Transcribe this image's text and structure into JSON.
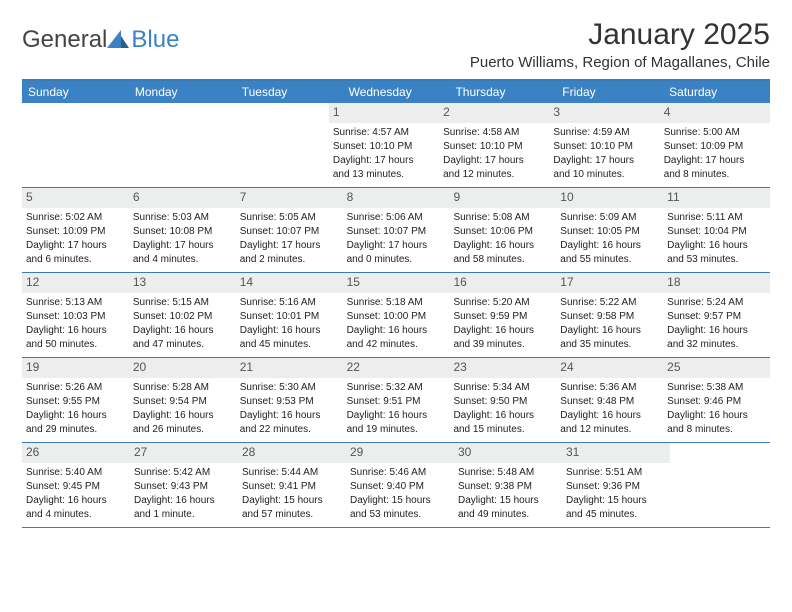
{
  "brand": {
    "part1": "General",
    "part2": "Blue"
  },
  "title": "January 2025",
  "location": "Puerto Williams, Region of Magallanes, Chile",
  "colors": {
    "header_bg": "#3b82c4",
    "border": "#3b7bb5",
    "day_number_bg": "#eceded",
    "text": "#333333"
  },
  "weekdays": [
    "Sunday",
    "Monday",
    "Tuesday",
    "Wednesday",
    "Thursday",
    "Friday",
    "Saturday"
  ],
  "weeks": [
    [
      null,
      null,
      null,
      {
        "n": "1",
        "sr": "Sunrise: 4:57 AM",
        "ss": "Sunset: 10:10 PM",
        "d1": "Daylight: 17 hours",
        "d2": "and 13 minutes."
      },
      {
        "n": "2",
        "sr": "Sunrise: 4:58 AM",
        "ss": "Sunset: 10:10 PM",
        "d1": "Daylight: 17 hours",
        "d2": "and 12 minutes."
      },
      {
        "n": "3",
        "sr": "Sunrise: 4:59 AM",
        "ss": "Sunset: 10:10 PM",
        "d1": "Daylight: 17 hours",
        "d2": "and 10 minutes."
      },
      {
        "n": "4",
        "sr": "Sunrise: 5:00 AM",
        "ss": "Sunset: 10:09 PM",
        "d1": "Daylight: 17 hours",
        "d2": "and 8 minutes."
      }
    ],
    [
      {
        "n": "5",
        "sr": "Sunrise: 5:02 AM",
        "ss": "Sunset: 10:09 PM",
        "d1": "Daylight: 17 hours",
        "d2": "and 6 minutes."
      },
      {
        "n": "6",
        "sr": "Sunrise: 5:03 AM",
        "ss": "Sunset: 10:08 PM",
        "d1": "Daylight: 17 hours",
        "d2": "and 4 minutes."
      },
      {
        "n": "7",
        "sr": "Sunrise: 5:05 AM",
        "ss": "Sunset: 10:07 PM",
        "d1": "Daylight: 17 hours",
        "d2": "and 2 minutes."
      },
      {
        "n": "8",
        "sr": "Sunrise: 5:06 AM",
        "ss": "Sunset: 10:07 PM",
        "d1": "Daylight: 17 hours",
        "d2": "and 0 minutes."
      },
      {
        "n": "9",
        "sr": "Sunrise: 5:08 AM",
        "ss": "Sunset: 10:06 PM",
        "d1": "Daylight: 16 hours",
        "d2": "and 58 minutes."
      },
      {
        "n": "10",
        "sr": "Sunrise: 5:09 AM",
        "ss": "Sunset: 10:05 PM",
        "d1": "Daylight: 16 hours",
        "d2": "and 55 minutes."
      },
      {
        "n": "11",
        "sr": "Sunrise: 5:11 AM",
        "ss": "Sunset: 10:04 PM",
        "d1": "Daylight: 16 hours",
        "d2": "and 53 minutes."
      }
    ],
    [
      {
        "n": "12",
        "sr": "Sunrise: 5:13 AM",
        "ss": "Sunset: 10:03 PM",
        "d1": "Daylight: 16 hours",
        "d2": "and 50 minutes."
      },
      {
        "n": "13",
        "sr": "Sunrise: 5:15 AM",
        "ss": "Sunset: 10:02 PM",
        "d1": "Daylight: 16 hours",
        "d2": "and 47 minutes."
      },
      {
        "n": "14",
        "sr": "Sunrise: 5:16 AM",
        "ss": "Sunset: 10:01 PM",
        "d1": "Daylight: 16 hours",
        "d2": "and 45 minutes."
      },
      {
        "n": "15",
        "sr": "Sunrise: 5:18 AM",
        "ss": "Sunset: 10:00 PM",
        "d1": "Daylight: 16 hours",
        "d2": "and 42 minutes."
      },
      {
        "n": "16",
        "sr": "Sunrise: 5:20 AM",
        "ss": "Sunset: 9:59 PM",
        "d1": "Daylight: 16 hours",
        "d2": "and 39 minutes."
      },
      {
        "n": "17",
        "sr": "Sunrise: 5:22 AM",
        "ss": "Sunset: 9:58 PM",
        "d1": "Daylight: 16 hours",
        "d2": "and 35 minutes."
      },
      {
        "n": "18",
        "sr": "Sunrise: 5:24 AM",
        "ss": "Sunset: 9:57 PM",
        "d1": "Daylight: 16 hours",
        "d2": "and 32 minutes."
      }
    ],
    [
      {
        "n": "19",
        "sr": "Sunrise: 5:26 AM",
        "ss": "Sunset: 9:55 PM",
        "d1": "Daylight: 16 hours",
        "d2": "and 29 minutes."
      },
      {
        "n": "20",
        "sr": "Sunrise: 5:28 AM",
        "ss": "Sunset: 9:54 PM",
        "d1": "Daylight: 16 hours",
        "d2": "and 26 minutes."
      },
      {
        "n": "21",
        "sr": "Sunrise: 5:30 AM",
        "ss": "Sunset: 9:53 PM",
        "d1": "Daylight: 16 hours",
        "d2": "and 22 minutes."
      },
      {
        "n": "22",
        "sr": "Sunrise: 5:32 AM",
        "ss": "Sunset: 9:51 PM",
        "d1": "Daylight: 16 hours",
        "d2": "and 19 minutes."
      },
      {
        "n": "23",
        "sr": "Sunrise: 5:34 AM",
        "ss": "Sunset: 9:50 PM",
        "d1": "Daylight: 16 hours",
        "d2": "and 15 minutes."
      },
      {
        "n": "24",
        "sr": "Sunrise: 5:36 AM",
        "ss": "Sunset: 9:48 PM",
        "d1": "Daylight: 16 hours",
        "d2": "and 12 minutes."
      },
      {
        "n": "25",
        "sr": "Sunrise: 5:38 AM",
        "ss": "Sunset: 9:46 PM",
        "d1": "Daylight: 16 hours",
        "d2": "and 8 minutes."
      }
    ],
    [
      {
        "n": "26",
        "sr": "Sunrise: 5:40 AM",
        "ss": "Sunset: 9:45 PM",
        "d1": "Daylight: 16 hours",
        "d2": "and 4 minutes."
      },
      {
        "n": "27",
        "sr": "Sunrise: 5:42 AM",
        "ss": "Sunset: 9:43 PM",
        "d1": "Daylight: 16 hours",
        "d2": "and 1 minute."
      },
      {
        "n": "28",
        "sr": "Sunrise: 5:44 AM",
        "ss": "Sunset: 9:41 PM",
        "d1": "Daylight: 15 hours",
        "d2": "and 57 minutes."
      },
      {
        "n": "29",
        "sr": "Sunrise: 5:46 AM",
        "ss": "Sunset: 9:40 PM",
        "d1": "Daylight: 15 hours",
        "d2": "and 53 minutes."
      },
      {
        "n": "30",
        "sr": "Sunrise: 5:48 AM",
        "ss": "Sunset: 9:38 PM",
        "d1": "Daylight: 15 hours",
        "d2": "and 49 minutes."
      },
      {
        "n": "31",
        "sr": "Sunrise: 5:51 AM",
        "ss": "Sunset: 9:36 PM",
        "d1": "Daylight: 15 hours",
        "d2": "and 45 minutes."
      },
      null
    ]
  ]
}
